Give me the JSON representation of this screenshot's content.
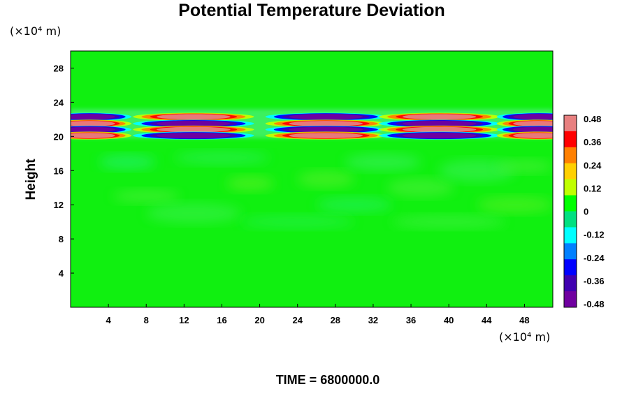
{
  "chart_data": {
    "type": "heatmap",
    "title": "Potential Temperature Deviation",
    "ylabel": "Height",
    "xlabel": "",
    "x_unit": "(×10⁴ m)",
    "y_unit": "(×10⁴ m)",
    "x_ticks": [
      "4",
      "8",
      "12",
      "16",
      "20",
      "24",
      "28",
      "32",
      "36",
      "40",
      "44",
      "48"
    ],
    "y_ticks": [
      "4",
      "8",
      "12",
      "16",
      "20",
      "24",
      "28"
    ],
    "xlim": [
      0,
      51
    ],
    "ylim": [
      0,
      30
    ],
    "colorbar": {
      "ticks": [
        "0.48",
        "0.36",
        "0.24",
        "0.12",
        "0",
        "-0.12",
        "-0.24",
        "-0.36",
        "-0.48"
      ],
      "range": [
        -0.48,
        0.48
      ],
      "colors": [
        "#e88080",
        "#ff0000",
        "#ff8000",
        "#ffd000",
        "#c0ff00",
        "#00ff00",
        "#00e080",
        "#00ffff",
        "#0080ff",
        "#0000ff",
        "#4000b0",
        "#7000a0"
      ]
    },
    "background_value": 0,
    "wave_band": {
      "height_range": [
        19.8,
        23.2
      ],
      "centers_x": [
        2,
        13,
        27,
        39,
        49.5
      ],
      "layers": [
        {
          "height": 22.3,
          "sign_at_first_center": -1
        },
        {
          "height": 21.5,
          "sign_at_first_center": 1
        },
        {
          "height": 20.8,
          "sign_at_first_center": -1
        },
        {
          "height": 20.1,
          "sign_at_first_center": 1
        }
      ],
      "peak_amplitude": 0.48
    },
    "time_text": "TIME = 6800000.0"
  }
}
